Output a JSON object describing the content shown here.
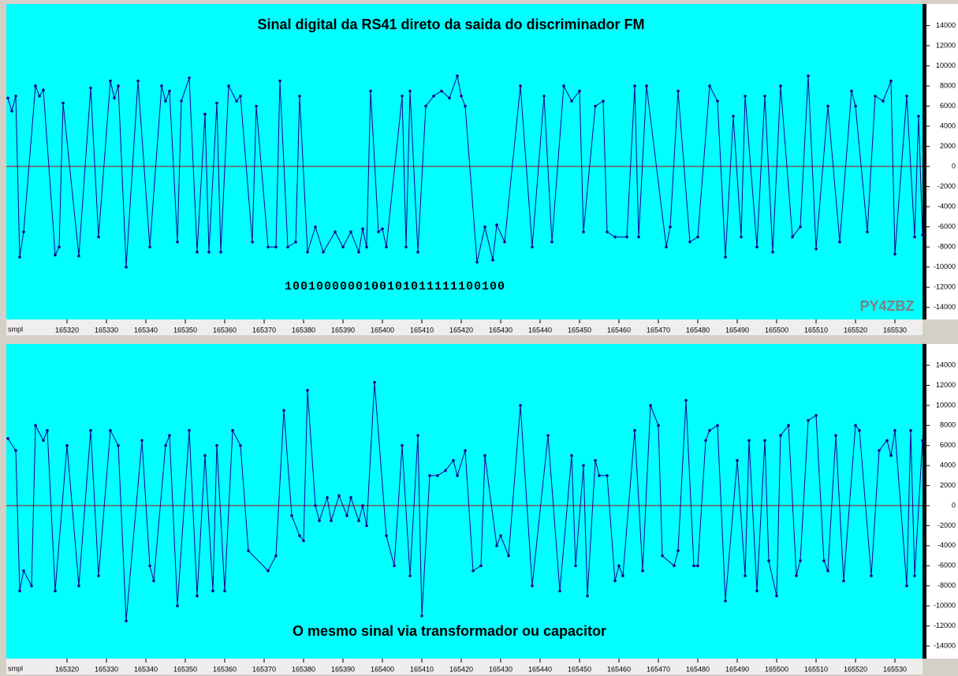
{
  "chart_data": [
    {
      "type": "line",
      "title": "Sinal digital da RS41 direto da saida do discriminador FM",
      "note": "1001000000100101011111100100",
      "watermark": "PY4ZBZ",
      "xlabel": "smpl",
      "color": "#1a0090",
      "zero_color": "#c00000",
      "background": "#00ffff",
      "xlim": [
        165304.6,
        165537
      ],
      "ylim": [
        -15200,
        16150
      ],
      "xticks": [
        165320,
        165330,
        165340,
        165350,
        165360,
        165370,
        165380,
        165390,
        165400,
        165410,
        165420,
        165430,
        165440,
        165450,
        165460,
        165470,
        165480,
        165490,
        165500,
        165510,
        165520,
        165530
      ],
      "yticks": [
        -14000,
        -12000,
        -10000,
        -8000,
        -6000,
        -4000,
        -2000,
        0,
        2000,
        4000,
        6000,
        8000,
        10000,
        12000,
        14000
      ],
      "x": [
        165305,
        165306,
        165307,
        165308,
        165309,
        165312,
        165313,
        165314,
        165317,
        165318,
        165319,
        165323,
        165326,
        165328,
        165331,
        165332,
        165333,
        165335,
        165338,
        165341,
        165344,
        165345,
        165346,
        165348,
        165349,
        165351,
        165353,
        165355,
        165356,
        165358,
        165359,
        165361,
        165363,
        165364,
        165367,
        165368,
        165371,
        165373,
        165374,
        165376,
        165378,
        165379,
        165381,
        165383,
        165385,
        165388,
        165390,
        165392,
        165394,
        165395,
        165396,
        165397,
        165399,
        165400,
        165401,
        165405,
        165406,
        165407,
        165409,
        165411,
        165413,
        165415,
        165417,
        165419,
        165420,
        165421,
        165424,
        165426,
        165428,
        165429,
        165431,
        165435,
        165438,
        165441,
        165443,
        165446,
        165448,
        165450,
        165451,
        165454,
        165456,
        165457,
        165459,
        165462,
        165464,
        165465,
        165467,
        165472,
        165473,
        165475,
        165478,
        165480,
        165483,
        165485,
        165487,
        165489,
        165491,
        165492,
        165495,
        165497,
        165499,
        165501,
        165504,
        165506,
        165508,
        165510,
        165513,
        165516,
        165519,
        165520,
        165523,
        165525,
        165527,
        165529,
        165530,
        165533,
        165535,
        165536,
        165537
      ],
      "values": [
        6800,
        5500,
        7000,
        -9000,
        -6500,
        8000,
        7000,
        7600,
        -8800,
        -8000,
        6300,
        -8900,
        7800,
        -7000,
        8500,
        6800,
        8000,
        -10000,
        8500,
        -8000,
        8000,
        6500,
        7500,
        -7500,
        6500,
        8800,
        -8500,
        5200,
        -8500,
        6300,
        -8500,
        8000,
        6500,
        7000,
        -7500,
        6000,
        -8000,
        -8000,
        8500,
        -8000,
        -7500,
        7000,
        -8500,
        -6000,
        -8500,
        -6500,
        -8000,
        -6500,
        -8500,
        -6200,
        -8000,
        7500,
        -6500,
        -6200,
        -8000,
        7000,
        -8000,
        7500,
        -8500,
        6000,
        7000,
        7500,
        6800,
        9000,
        7000,
        6000,
        -9500,
        -6000,
        -9300,
        -5800,
        -7500,
        8000,
        -8000,
        7000,
        -7500,
        8000,
        6500,
        7500,
        -6500,
        6000,
        6500,
        -6500,
        -7000,
        -7000,
        8000,
        -7000,
        8000,
        -8000,
        -6000,
        7500,
        -7500,
        -7000,
        8000,
        6500,
        -9000,
        5000,
        -7000,
        7000,
        -8000,
        7000,
        -8500,
        8000,
        -7000,
        -6000,
        9000,
        -8200,
        6000,
        -7500,
        7500,
        6000,
        -6500,
        7000,
        6500,
        8500,
        -8700,
        7000,
        -7000,
        5000,
        -6800
      ]
    },
    {
      "type": "line",
      "note": "O mesmo sinal via transformador ou capacitor",
      "xlabel": "smpl",
      "color": "#1a0090",
      "zero_color": "#c00000",
      "background": "#00ffff",
      "xlim": [
        165304.6,
        165537
      ],
      "ylim": [
        -15260,
        16130
      ],
      "xticks": [
        165320,
        165330,
        165340,
        165350,
        165360,
        165370,
        165380,
        165390,
        165400,
        165410,
        165420,
        165430,
        165440,
        165450,
        165460,
        165470,
        165480,
        165490,
        165500,
        165510,
        165520,
        165530
      ],
      "yticks": [
        -14000,
        -12000,
        -10000,
        -8000,
        -6000,
        -4000,
        -2000,
        0,
        2000,
        4000,
        6000,
        8000,
        10000,
        12000,
        14000
      ],
      "x": [
        165305,
        165307,
        165308,
        165309,
        165311,
        165312,
        165314,
        165315,
        165317,
        165320,
        165323,
        165326,
        165328,
        165331,
        165333,
        165335,
        165339,
        165341,
        165342,
        165345,
        165346,
        165348,
        165351,
        165353,
        165355,
        165357,
        165358,
        165360,
        165362,
        165364,
        165366,
        165371,
        165373,
        165375,
        165377,
        165379,
        165380,
        165381,
        165383,
        165384,
        165386,
        165387,
        165389,
        165391,
        165392,
        165394,
        165395,
        165396,
        165398,
        165401,
        165403,
        165405,
        165407,
        165409,
        165410,
        165412,
        165414,
        165416,
        165418,
        165419,
        165421,
        165423,
        165425,
        165426,
        165429,
        165430,
        165432,
        165435,
        165438,
        165442,
        165445,
        165448,
        165449,
        165451,
        165452,
        165454,
        165455,
        165457,
        165459,
        165460,
        165461,
        165464,
        165466,
        165468,
        165470,
        165471,
        165474,
        165475,
        165477,
        165479,
        165480,
        165482,
        165483,
        165485,
        165487,
        165490,
        165492,
        165493,
        165495,
        165497,
        165498,
        165500,
        165501,
        165503,
        165505,
        165506,
        165508,
        165510,
        165512,
        165513,
        165515,
        165517,
        165520,
        165521,
        165524,
        165526,
        165528,
        165529,
        165530,
        165533,
        165534,
        165535,
        165537
      ],
      "values": [
        6700,
        5500,
        -8500,
        -6500,
        -8000,
        8000,
        6500,
        7500,
        -8500,
        6000,
        -8000,
        7500,
        -7000,
        7500,
        6000,
        -11500,
        6500,
        -6000,
        -7500,
        6000,
        7000,
        -10000,
        7500,
        -9000,
        5000,
        -8500,
        6000,
        -8500,
        7500,
        6000,
        -4500,
        -6500,
        -5000,
        9500,
        -1000,
        -3000,
        -3500,
        11500,
        0,
        -1500,
        800,
        -1500,
        1000,
        -1000,
        800,
        -1500,
        0,
        -2000,
        12300,
        -3000,
        -6000,
        6000,
        -7000,
        7000,
        -11000,
        3000,
        3000,
        3500,
        4500,
        3000,
        5500,
        -6500,
        -6000,
        5000,
        -4000,
        -3000,
        -5000,
        10000,
        -8000,
        7000,
        -8500,
        5000,
        -6000,
        4000,
        -9000,
        4500,
        3000,
        3000,
        -7500,
        -6000,
        -7000,
        7500,
        -6500,
        10000,
        8000,
        -5000,
        -6000,
        -4500,
        10500,
        -6000,
        -6000,
        6500,
        7500,
        8000,
        -9500,
        4500,
        -7000,
        6500,
        -8500,
        6500,
        -5500,
        -9000,
        7000,
        8000,
        -7000,
        -5500,
        8500,
        9000,
        -5500,
        -6500,
        7000,
        -7500,
        8000,
        7500,
        -7000,
        5500,
        6500,
        5000,
        7500,
        -8000,
        7500,
        -7000,
        6500
      ]
    }
  ]
}
